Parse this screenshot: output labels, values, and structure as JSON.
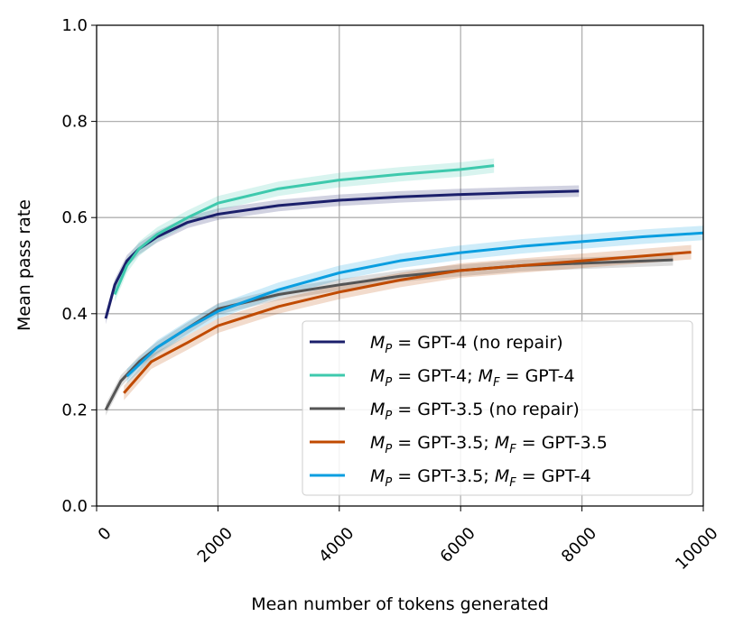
{
  "chart_data": {
    "type": "line",
    "title": "",
    "xlabel": "Mean number of tokens generated",
    "ylabel": "Mean pass rate",
    "xlim": [
      0,
      10000
    ],
    "ylim": [
      0.0,
      1.0
    ],
    "xticks": [
      "0",
      "2000",
      "4000",
      "6000",
      "8000",
      "10000"
    ],
    "xtick_values": [
      0,
      2000,
      4000,
      6000,
      8000,
      10000
    ],
    "yticks": [
      "0.0",
      "0.2",
      "0.4",
      "0.6",
      "0.8",
      "1.0"
    ],
    "ytick_values": [
      0,
      0.2,
      0.4,
      0.6,
      0.8,
      1.0
    ],
    "grid": true,
    "legend_position": "bottom-right",
    "series": [
      {
        "name": "GPT-4 (no repair)",
        "mp": "GPT-4 (no repair)",
        "mf": "",
        "color": "#1b1f6b",
        "band": 0.012,
        "x": [
          150,
          300,
          500,
          700,
          1000,
          1500,
          2000,
          3000,
          4000,
          5000,
          6000,
          7000,
          7950
        ],
        "y": [
          0.39,
          0.46,
          0.51,
          0.535,
          0.56,
          0.59,
          0.607,
          0.625,
          0.636,
          0.643,
          0.648,
          0.652,
          0.655
        ]
      },
      {
        "name": "GPT-4; GPT-4",
        "mp": "GPT-4;",
        "mf": "GPT-4",
        "color": "#3ec9ad",
        "band": 0.015,
        "x": [
          300,
          500,
          700,
          1000,
          1500,
          2000,
          3000,
          4000,
          5000,
          6000,
          6550
        ],
        "y": [
          0.44,
          0.5,
          0.535,
          0.565,
          0.6,
          0.63,
          0.66,
          0.678,
          0.69,
          0.7,
          0.708
        ]
      },
      {
        "name": "GPT-3.5 (no repair)",
        "mp": "GPT-3.5 (no repair)",
        "mf": "",
        "color": "#555555",
        "band": 0.012,
        "x": [
          150,
          400,
          700,
          1000,
          1500,
          2000,
          3000,
          4000,
          5000,
          6000,
          7000,
          8000,
          9500
        ],
        "y": [
          0.2,
          0.26,
          0.3,
          0.33,
          0.37,
          0.41,
          0.44,
          0.46,
          0.478,
          0.49,
          0.5,
          0.505,
          0.512
        ]
      },
      {
        "name": "GPT-3.5; GPT-3.5",
        "mp": "GPT-3.5;",
        "mf": "GPT-3.5",
        "color": "#c04a00",
        "band": 0.015,
        "x": [
          450,
          900,
          1500,
          2000,
          3000,
          4000,
          5000,
          6000,
          7000,
          8000,
          9000,
          9800
        ],
        "y": [
          0.235,
          0.3,
          0.34,
          0.375,
          0.415,
          0.445,
          0.47,
          0.49,
          0.5,
          0.51,
          0.52,
          0.528
        ]
      },
      {
        "name": "GPT-3.5; GPT-4",
        "mp": "GPT-3.5;",
        "mf": "GPT-4",
        "color": "#0a9ee0",
        "band": 0.015,
        "x": [
          500,
          1000,
          1500,
          2000,
          3000,
          4000,
          5000,
          6000,
          7000,
          8000,
          9000,
          10000
        ],
        "y": [
          0.27,
          0.33,
          0.37,
          0.405,
          0.45,
          0.485,
          0.51,
          0.527,
          0.54,
          0.55,
          0.56,
          0.568
        ]
      }
    ]
  }
}
